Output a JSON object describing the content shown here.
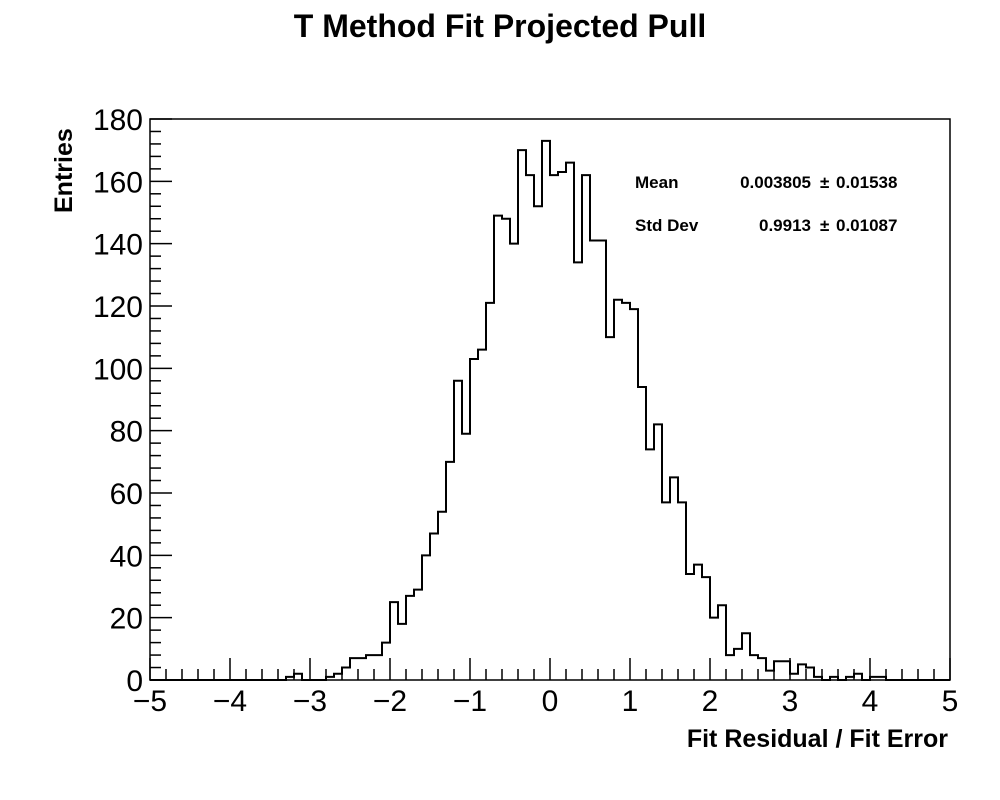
{
  "chart_data": {
    "type": "bar",
    "title": "T Method Fit Projected Pull",
    "xlabel": "Fit Residual / Fit Error",
    "ylabel": "Entries",
    "xlim": [
      -5,
      5
    ],
    "ylim": [
      0,
      180
    ],
    "x_ticks": [
      -5,
      -4,
      -3,
      -2,
      -1,
      0,
      1,
      2,
      3,
      4,
      5
    ],
    "x_tick_labels": [
      "−5",
      "−4",
      "−3",
      "−2",
      "−1",
      "0",
      "1",
      "2",
      "3",
      "4",
      "5"
    ],
    "y_ticks": [
      0,
      20,
      40,
      60,
      80,
      100,
      120,
      140,
      160,
      180
    ],
    "y_tick_labels": [
      "0",
      "20",
      "40",
      "60",
      "80",
      "100",
      "120",
      "140",
      "160",
      "180"
    ],
    "grid": false,
    "legend": "none",
    "bin_width": 0.1,
    "x_start": -5,
    "values": [
      0,
      0,
      0,
      0,
      0,
      0,
      0,
      0,
      0,
      0,
      0,
      0,
      0,
      0,
      0,
      0,
      0,
      1,
      2,
      0,
      0,
      0,
      1,
      2,
      4,
      7,
      7,
      8,
      8,
      12,
      25,
      18,
      27,
      29,
      40,
      47,
      54,
      70,
      96,
      79,
      103,
      106,
      121,
      149,
      148,
      140,
      170,
      162,
      152,
      173,
      162,
      163,
      166,
      134,
      162,
      141,
      141,
      110,
      122,
      121,
      119,
      94,
      74,
      82,
      57,
      65,
      57,
      34,
      37,
      33,
      20,
      24,
      8,
      10,
      15,
      8,
      7,
      3,
      6,
      6,
      2,
      5,
      4,
      1,
      0,
      1,
      0,
      1,
      2,
      0,
      1,
      1,
      0,
      0,
      0,
      0,
      0,
      0,
      0,
      0
    ],
    "stats": {
      "mean_label": "Mean",
      "mean_value": "0.003805",
      "mean_error": "0.01538",
      "std_label": "Std Dev",
      "std_value": "0.9913",
      "std_error": "0.01087",
      "pm_symbol": "±"
    },
    "colors": {
      "line": "#000000",
      "background": "#ffffff"
    }
  }
}
